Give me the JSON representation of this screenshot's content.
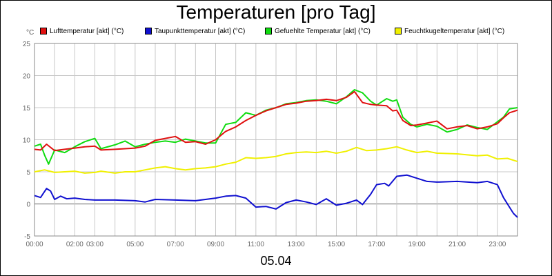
{
  "chart_data": {
    "type": "line",
    "title": "Temperaturen [pro Tag]",
    "date_label": "05.04",
    "unit": "°C",
    "ylim": [
      -5,
      25
    ],
    "yticks": [
      -5,
      0,
      5,
      10,
      15,
      20,
      25
    ],
    "xlim": [
      0,
      24
    ],
    "xticks": [
      {
        "value": 0,
        "label": "00:00"
      },
      {
        "value": 2,
        "label": "02:00"
      },
      {
        "value": 3,
        "label": "03:00"
      },
      {
        "value": 5,
        "label": "05:00"
      },
      {
        "value": 7,
        "label": "07:00"
      },
      {
        "value": 9,
        "label": "09:00"
      },
      {
        "value": 11,
        "label": "11:00"
      },
      {
        "value": 13,
        "label": "13:00"
      },
      {
        "value": 15,
        "label": "15:00"
      },
      {
        "value": 17,
        "label": "17:00"
      },
      {
        "value": 19,
        "label": "19:00"
      },
      {
        "value": 21,
        "label": "21:00"
      },
      {
        "value": 23,
        "label": "23:00"
      }
    ],
    "grid": true,
    "series": [
      {
        "name": "Lufttemperatur [akt] (°C)",
        "color": "#e01010",
        "points": [
          [
            0,
            8.5
          ],
          [
            0.3,
            8.4
          ],
          [
            0.6,
            9.3
          ],
          [
            1.0,
            8.3
          ],
          [
            1.5,
            8.5
          ],
          [
            2.0,
            8.7
          ],
          [
            2.5,
            8.9
          ],
          [
            3.0,
            9.0
          ],
          [
            3.3,
            8.4
          ],
          [
            4.0,
            8.5
          ],
          [
            5.0,
            8.7
          ],
          [
            5.5,
            9.0
          ],
          [
            6.0,
            9.9
          ],
          [
            6.5,
            10.2
          ],
          [
            7.0,
            10.5
          ],
          [
            7.5,
            9.6
          ],
          [
            8.0,
            9.7
          ],
          [
            8.5,
            9.3
          ],
          [
            9.0,
            10.0
          ],
          [
            9.5,
            11.3
          ],
          [
            10.0,
            12.0
          ],
          [
            10.5,
            13.0
          ],
          [
            11.0,
            13.8
          ],
          [
            11.5,
            14.5
          ],
          [
            12.0,
            15.0
          ],
          [
            12.5,
            15.5
          ],
          [
            13.0,
            15.7
          ],
          [
            13.5,
            16.0
          ],
          [
            14.0,
            16.1
          ],
          [
            14.5,
            16.3
          ],
          [
            15.0,
            16.1
          ],
          [
            15.5,
            16.6
          ],
          [
            15.9,
            17.5
          ],
          [
            16.3,
            15.8
          ],
          [
            16.7,
            15.5
          ],
          [
            17.0,
            15.4
          ],
          [
            17.5,
            15.3
          ],
          [
            17.8,
            14.5
          ],
          [
            18.0,
            14.6
          ],
          [
            18.3,
            13.0
          ],
          [
            18.7,
            12.2
          ],
          [
            19.0,
            12.3
          ],
          [
            19.5,
            12.6
          ],
          [
            20.0,
            12.9
          ],
          [
            20.5,
            11.7
          ],
          [
            21.0,
            12.0
          ],
          [
            21.5,
            12.2
          ],
          [
            22.0,
            11.7
          ],
          [
            22.5,
            12.0
          ],
          [
            23.0,
            12.5
          ],
          [
            23.3,
            13.4
          ],
          [
            23.6,
            14.2
          ],
          [
            24.0,
            14.6
          ]
        ]
      },
      {
        "name": "Taupunkttemperatur [akt] (°C)",
        "color": "#1010d0",
        "points": [
          [
            0,
            1.3
          ],
          [
            0.3,
            1.0
          ],
          [
            0.6,
            2.4
          ],
          [
            0.8,
            2.0
          ],
          [
            1.0,
            0.7
          ],
          [
            1.3,
            1.2
          ],
          [
            1.6,
            0.8
          ],
          [
            2.0,
            0.9
          ],
          [
            2.5,
            0.7
          ],
          [
            3.0,
            0.6
          ],
          [
            4.0,
            0.6
          ],
          [
            5.0,
            0.5
          ],
          [
            5.5,
            0.3
          ],
          [
            6.0,
            0.7
          ],
          [
            7.0,
            0.6
          ],
          [
            8.0,
            0.5
          ],
          [
            9.0,
            0.9
          ],
          [
            9.5,
            1.2
          ],
          [
            10.0,
            1.3
          ],
          [
            10.5,
            0.9
          ],
          [
            11.0,
            -0.5
          ],
          [
            11.5,
            -0.4
          ],
          [
            12.0,
            -0.8
          ],
          [
            12.5,
            0.2
          ],
          [
            13.0,
            0.6
          ],
          [
            13.5,
            0.3
          ],
          [
            14.0,
            -0.1
          ],
          [
            14.5,
            0.8
          ],
          [
            15.0,
            -0.2
          ],
          [
            15.5,
            0.1
          ],
          [
            16.0,
            0.6
          ],
          [
            16.3,
            -0.1
          ],
          [
            16.7,
            1.5
          ],
          [
            17.0,
            3.0
          ],
          [
            17.4,
            3.2
          ],
          [
            17.6,
            2.8
          ],
          [
            18.0,
            4.3
          ],
          [
            18.5,
            4.5
          ],
          [
            19.0,
            4.0
          ],
          [
            19.5,
            3.5
          ],
          [
            20.0,
            3.4
          ],
          [
            21.0,
            3.5
          ],
          [
            22.0,
            3.3
          ],
          [
            22.5,
            3.5
          ],
          [
            23.0,
            3.0
          ],
          [
            23.3,
            1.0
          ],
          [
            23.6,
            -0.5
          ],
          [
            23.8,
            -1.5
          ],
          [
            24.0,
            -2.1
          ]
        ]
      },
      {
        "name": "Gefuehlte Temperatur [akt] (°C)",
        "color": "#10dc10",
        "points": [
          [
            0,
            9.0
          ],
          [
            0.3,
            9.3
          ],
          [
            0.5,
            7.6
          ],
          [
            0.7,
            6.2
          ],
          [
            1.0,
            8.4
          ],
          [
            1.5,
            8.0
          ],
          [
            2.0,
            8.9
          ],
          [
            2.5,
            9.7
          ],
          [
            3.0,
            10.2
          ],
          [
            3.3,
            8.6
          ],
          [
            4.0,
            9.2
          ],
          [
            4.5,
            9.8
          ],
          [
            5.0,
            8.9
          ],
          [
            5.5,
            9.3
          ],
          [
            6.0,
            9.6
          ],
          [
            6.5,
            9.8
          ],
          [
            7.0,
            9.6
          ],
          [
            7.5,
            10.1
          ],
          [
            8.0,
            9.8
          ],
          [
            8.5,
            9.5
          ],
          [
            9.0,
            9.5
          ],
          [
            9.5,
            12.4
          ],
          [
            10.0,
            12.7
          ],
          [
            10.5,
            14.2
          ],
          [
            11.0,
            13.8
          ],
          [
            11.5,
            14.6
          ],
          [
            12.0,
            15.0
          ],
          [
            12.5,
            15.6
          ],
          [
            13.0,
            15.8
          ],
          [
            13.5,
            16.1
          ],
          [
            14.0,
            16.2
          ],
          [
            14.5,
            16.0
          ],
          [
            15.0,
            15.6
          ],
          [
            15.5,
            16.7
          ],
          [
            15.9,
            17.8
          ],
          [
            16.3,
            17.3
          ],
          [
            16.7,
            16.0
          ],
          [
            17.0,
            15.4
          ],
          [
            17.5,
            16.4
          ],
          [
            17.8,
            16.0
          ],
          [
            18.0,
            16.2
          ],
          [
            18.3,
            13.5
          ],
          [
            18.7,
            12.4
          ],
          [
            19.0,
            12.0
          ],
          [
            19.5,
            12.4
          ],
          [
            20.0,
            12.1
          ],
          [
            20.5,
            11.2
          ],
          [
            21.0,
            11.6
          ],
          [
            21.5,
            12.3
          ],
          [
            22.0,
            11.9
          ],
          [
            22.5,
            11.6
          ],
          [
            23.0,
            12.8
          ],
          [
            23.3,
            13.5
          ],
          [
            23.6,
            14.8
          ],
          [
            24.0,
            15.0
          ]
        ]
      },
      {
        "name": "Feuchtkugeltemperatur [akt] (°C)",
        "color": "#f0f000",
        "points": [
          [
            0,
            5.0
          ],
          [
            0.5,
            5.3
          ],
          [
            1.0,
            4.9
          ],
          [
            1.5,
            5.0
          ],
          [
            2.0,
            5.1
          ],
          [
            2.5,
            4.8
          ],
          [
            3.0,
            4.9
          ],
          [
            3.3,
            5.1
          ],
          [
            4.0,
            4.8
          ],
          [
            4.5,
            5.0
          ],
          [
            5.0,
            5.0
          ],
          [
            5.5,
            5.3
          ],
          [
            6.0,
            5.6
          ],
          [
            6.5,
            5.8
          ],
          [
            7.0,
            5.5
          ],
          [
            7.5,
            5.3
          ],
          [
            8.0,
            5.5
          ],
          [
            8.5,
            5.6
          ],
          [
            9.0,
            5.8
          ],
          [
            9.5,
            6.2
          ],
          [
            10.0,
            6.5
          ],
          [
            10.5,
            7.2
          ],
          [
            11.0,
            7.1
          ],
          [
            11.5,
            7.2
          ],
          [
            12.0,
            7.4
          ],
          [
            12.5,
            7.8
          ],
          [
            13.0,
            8.0
          ],
          [
            13.5,
            8.1
          ],
          [
            14.0,
            8.0
          ],
          [
            14.5,
            8.2
          ],
          [
            15.0,
            7.9
          ],
          [
            15.5,
            8.2
          ],
          [
            16.0,
            8.8
          ],
          [
            16.5,
            8.3
          ],
          [
            17.0,
            8.4
          ],
          [
            17.5,
            8.6
          ],
          [
            18.0,
            8.9
          ],
          [
            18.5,
            8.4
          ],
          [
            19.0,
            8.0
          ],
          [
            19.5,
            8.2
          ],
          [
            20.0,
            7.9
          ],
          [
            21.0,
            7.8
          ],
          [
            22.0,
            7.5
          ],
          [
            22.5,
            7.6
          ],
          [
            23.0,
            7.0
          ],
          [
            23.5,
            7.1
          ],
          [
            24.0,
            6.6
          ]
        ]
      }
    ]
  }
}
